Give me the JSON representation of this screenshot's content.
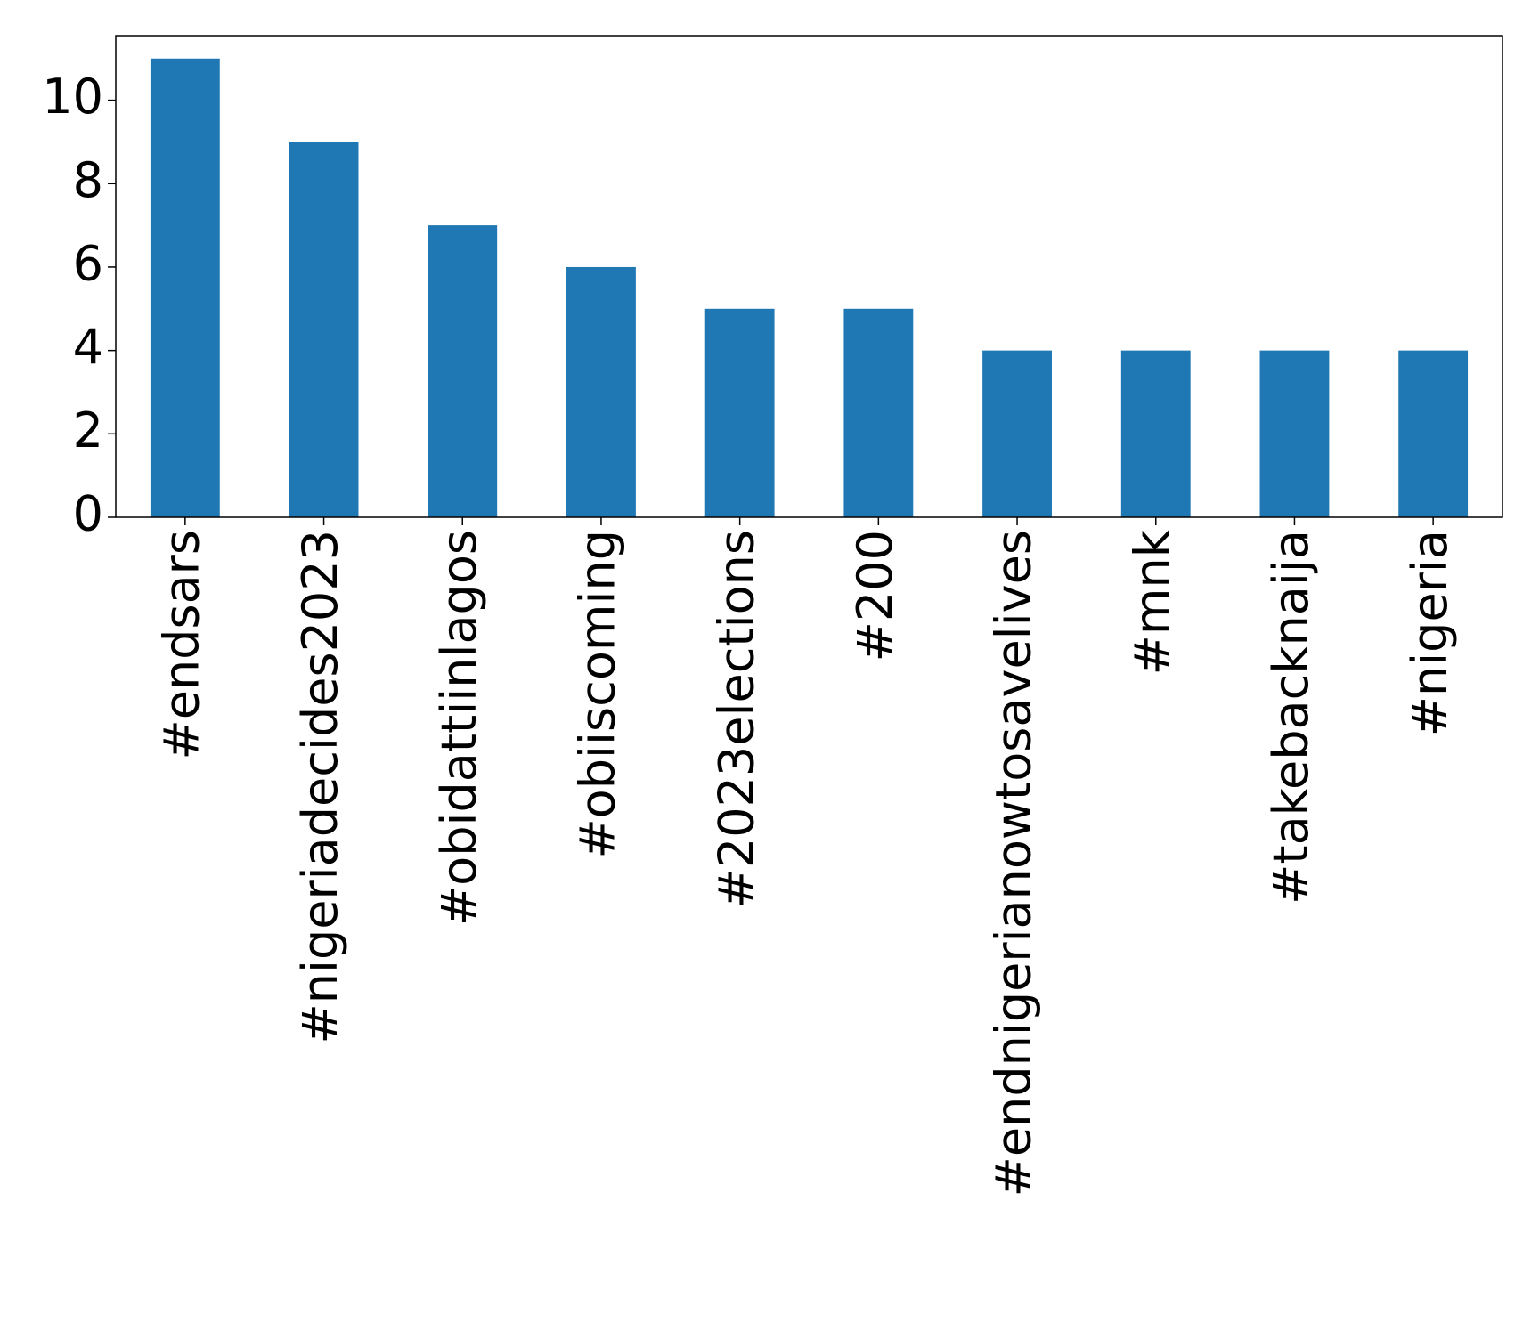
{
  "chart_data": {
    "type": "bar",
    "categories": [
      "#endsars",
      "#nigeriadecides2023",
      "#obidattiinlagos",
      "#obiiscoming",
      "#2023elections",
      "#200",
      "#endnigerianowtosavelives",
      "#mnk",
      "#takebacknaija",
      "#nigeria"
    ],
    "values": [
      11,
      9,
      7,
      6,
      5,
      5,
      4,
      4,
      4,
      4
    ],
    "color": "#1f77b4",
    "ylim": [
      0,
      11.55
    ],
    "yticks": [
      0,
      2,
      4,
      6,
      8,
      10
    ],
    "grid": false
  }
}
